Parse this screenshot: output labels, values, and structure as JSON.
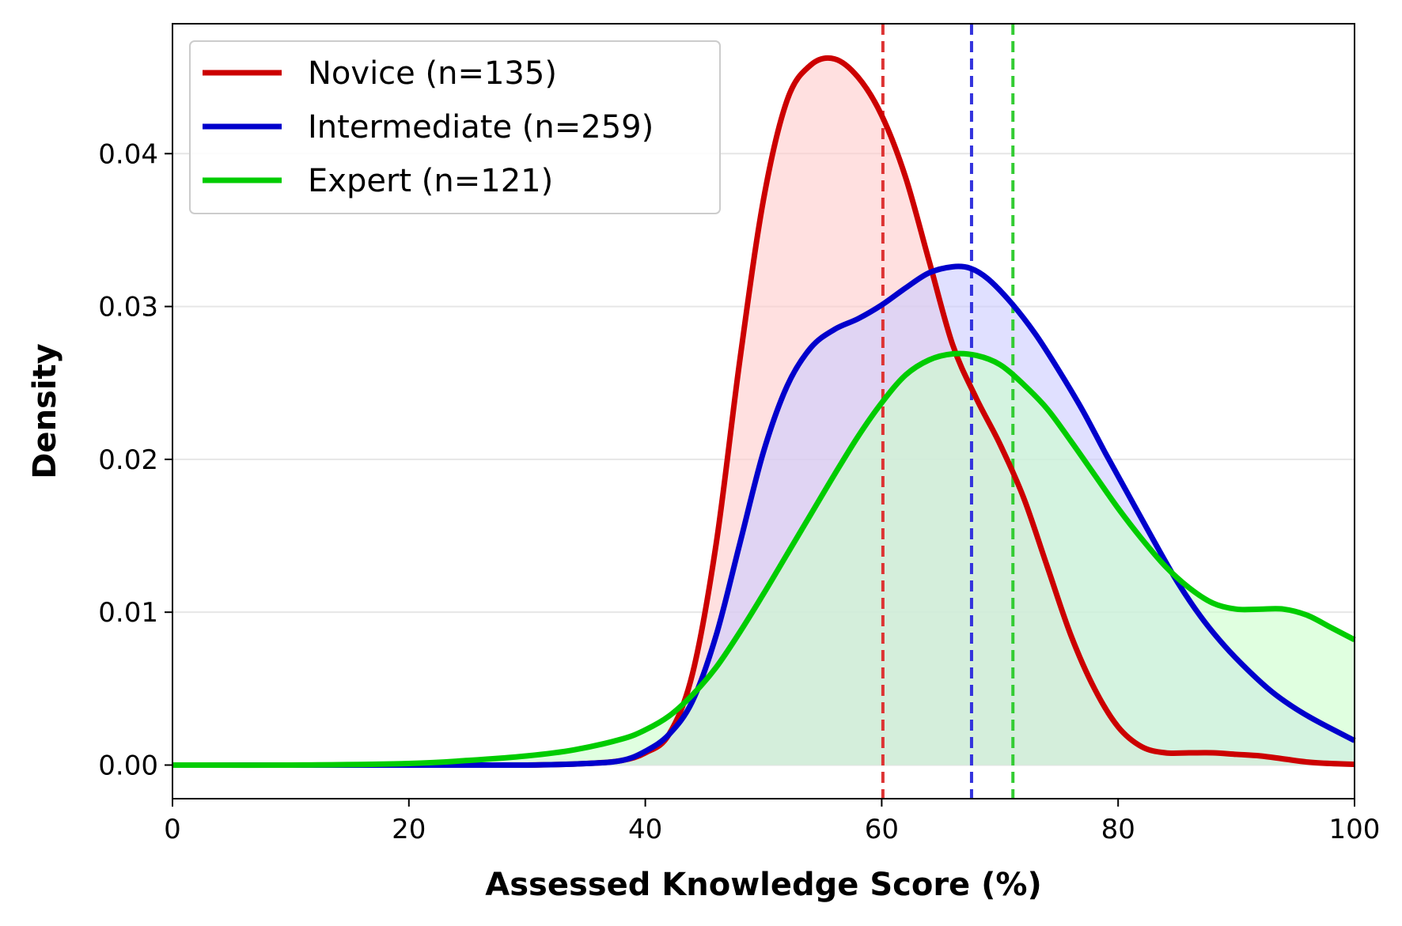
{
  "chart_data": {
    "type": "line",
    "title": "",
    "xlabel": "Assessed Knowledge Score (%)",
    "ylabel": "Density",
    "xlim": [
      0,
      100
    ],
    "ylim": [
      -0.0022,
      0.0485
    ],
    "x_ticks": [
      "0",
      "20",
      "40",
      "60",
      "80",
      "100"
    ],
    "x_tick_values": [
      0,
      20,
      40,
      60,
      80,
      100
    ],
    "y_ticks": [
      "0.00",
      "0.01",
      "0.02",
      "0.03",
      "0.04"
    ],
    "y_tick_values": [
      0,
      0.01,
      0.02,
      0.03,
      0.04
    ],
    "grid": "horizontal",
    "legend_position": "top-left",
    "series": [
      {
        "name": "Novice (n=135)",
        "color": "#cc0000",
        "fill": "#ffcccc",
        "mean": 60.1,
        "x": [
          0,
          10,
          20,
          30,
          35,
          38,
          40,
          42,
          44,
          46,
          48,
          50,
          52,
          54,
          56,
          58,
          60,
          62,
          64,
          66,
          68,
          70,
          72,
          74,
          76,
          78,
          80,
          82,
          84,
          86,
          88,
          90,
          92,
          94,
          96,
          98,
          100
        ],
        "y": [
          0,
          0,
          0,
          0,
          0.0001,
          0.0003,
          0.0008,
          0.002,
          0.006,
          0.0145,
          0.0265,
          0.037,
          0.0435,
          0.0458,
          0.0462,
          0.045,
          0.0425,
          0.0385,
          0.033,
          0.0275,
          0.024,
          0.021,
          0.0175,
          0.013,
          0.0085,
          0.005,
          0.0025,
          0.0012,
          0.0008,
          0.0008,
          0.0008,
          0.0007,
          0.0006,
          0.0004,
          0.0002,
          0.0001,
          5e-05
        ]
      },
      {
        "name": "Intermediate (n=259)",
        "color": "#0000cc",
        "fill": "#ccccff",
        "mean": 67.6,
        "x": [
          0,
          10,
          20,
          30,
          35,
          38,
          40,
          42,
          44,
          46,
          48,
          50,
          52,
          54,
          56,
          58,
          60,
          62,
          64,
          66,
          67.5,
          69,
          71,
          73,
          75,
          77,
          79,
          81,
          83,
          85,
          87,
          89,
          91,
          93,
          95,
          97,
          100
        ],
        "y": [
          0,
          0,
          0,
          0,
          0.0001,
          0.0003,
          0.0009,
          0.002,
          0.0042,
          0.0085,
          0.0145,
          0.0205,
          0.0248,
          0.0273,
          0.0285,
          0.0292,
          0.0301,
          0.0312,
          0.0322,
          0.0326,
          0.0325,
          0.0318,
          0.0302,
          0.0282,
          0.0258,
          0.0232,
          0.0203,
          0.0175,
          0.0147,
          0.012,
          0.0097,
          0.0078,
          0.0062,
          0.0048,
          0.0037,
          0.0028,
          0.0016
        ]
      },
      {
        "name": "Expert (n=121)",
        "color": "#00cc00",
        "fill": "#ccffcc",
        "mean": 71.1,
        "x": [
          0,
          10,
          20,
          25,
          30,
          34,
          38,
          40,
          42,
          44,
          46,
          48,
          50,
          52,
          54,
          56,
          58,
          60,
          62,
          64,
          66,
          68,
          70,
          72,
          74,
          76,
          78,
          80,
          82,
          84,
          86,
          88,
          90,
          92,
          94,
          96,
          98,
          100
        ],
        "y": [
          0,
          0,
          0.0001,
          0.0003,
          0.0006,
          0.001,
          0.0017,
          0.0023,
          0.0032,
          0.0046,
          0.0064,
          0.0087,
          0.0112,
          0.0138,
          0.0164,
          0.019,
          0.0215,
          0.0237,
          0.0255,
          0.0265,
          0.0269,
          0.0268,
          0.0262,
          0.0249,
          0.0233,
          0.0212,
          0.019,
          0.0168,
          0.0148,
          0.013,
          0.0116,
          0.0106,
          0.0102,
          0.0102,
          0.0102,
          0.0098,
          0.009,
          0.0082
        ]
      }
    ]
  }
}
